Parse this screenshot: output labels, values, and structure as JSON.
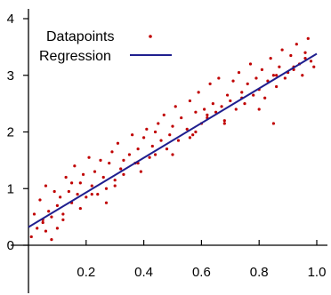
{
  "chart_data": {
    "type": "scatter",
    "title": "",
    "xlabel": "",
    "ylabel": "",
    "xlim": [
      0,
      1.0
    ],
    "ylim": [
      0,
      4
    ],
    "x_ticks": [
      {
        "value": 0.2,
        "label": "0.2"
      },
      {
        "value": 0.4,
        "label": "0.4"
      },
      {
        "value": 0.6,
        "label": "0.6"
      },
      {
        "value": 0.8,
        "label": "0.8"
      },
      {
        "value": 1.0,
        "label": "1.0"
      }
    ],
    "y_ticks": [
      {
        "value": 0,
        "label": "0"
      },
      {
        "value": 1,
        "label": "1"
      },
      {
        "value": 2,
        "label": "2"
      },
      {
        "value": 3,
        "label": "3"
      },
      {
        "value": 4,
        "label": "4"
      }
    ],
    "grid": false,
    "legend_position": "top-left",
    "series": [
      {
        "name": "Datapoints",
        "kind": "scatter",
        "color": "#c00000",
        "x": [
          0.01,
          0.02,
          0.03,
          0.04,
          0.05,
          0.06,
          0.06,
          0.07,
          0.08,
          0.09,
          0.1,
          0.1,
          0.11,
          0.12,
          0.13,
          0.14,
          0.15,
          0.16,
          0.17,
          0.18,
          0.18,
          0.19,
          0.2,
          0.21,
          0.22,
          0.23,
          0.24,
          0.25,
          0.26,
          0.27,
          0.28,
          0.29,
          0.3,
          0.31,
          0.32,
          0.33,
          0.35,
          0.36,
          0.37,
          0.38,
          0.39,
          0.4,
          0.41,
          0.42,
          0.43,
          0.44,
          0.45,
          0.46,
          0.47,
          0.48,
          0.49,
          0.5,
          0.51,
          0.52,
          0.53,
          0.55,
          0.56,
          0.57,
          0.58,
          0.59,
          0.6,
          0.61,
          0.62,
          0.63,
          0.64,
          0.65,
          0.66,
          0.67,
          0.68,
          0.69,
          0.7,
          0.71,
          0.72,
          0.73,
          0.74,
          0.75,
          0.76,
          0.77,
          0.78,
          0.79,
          0.8,
          0.81,
          0.82,
          0.83,
          0.84,
          0.85,
          0.86,
          0.87,
          0.88,
          0.89,
          0.9,
          0.91,
          0.92,
          0.93,
          0.94,
          0.95,
          0.96,
          0.97,
          0.98,
          0.99,
          0.05,
          0.12,
          0.15,
          0.22,
          0.27,
          0.33,
          0.38,
          0.44,
          0.5,
          0.56,
          0.62,
          0.68,
          0.74,
          0.8,
          0.86,
          0.92,
          0.96,
          0.08,
          0.3,
          0.58,
          0.85
        ],
        "y": [
          0.15,
          0.55,
          0.3,
          0.8,
          0.45,
          1.05,
          0.25,
          0.6,
          0.5,
          0.95,
          0.3,
          0.7,
          0.85,
          0.55,
          1.2,
          0.95,
          0.75,
          1.4,
          0.9,
          1.1,
          0.65,
          1.25,
          0.85,
          1.55,
          1.05,
          1.3,
          0.9,
          1.5,
          1.2,
          1.0,
          1.45,
          1.65,
          1.15,
          1.8,
          1.35,
          1.25,
          1.6,
          1.95,
          1.45,
          1.7,
          1.3,
          1.9,
          2.05,
          1.55,
          1.75,
          1.6,
          2.15,
          1.85,
          2.3,
          1.7,
          1.95,
          2.1,
          2.45,
          1.85,
          2.25,
          2.05,
          2.55,
          1.95,
          2.35,
          2.7,
          2.15,
          2.4,
          2.25,
          2.85,
          2.5,
          2.35,
          2.95,
          2.45,
          2.2,
          2.65,
          2.55,
          2.9,
          2.4,
          3.05,
          2.7,
          2.5,
          2.85,
          3.2,
          2.65,
          2.95,
          2.75,
          3.1,
          2.6,
          2.9,
          3.3,
          3.0,
          2.8,
          3.15,
          3.45,
          2.95,
          3.05,
          3.35,
          3.1,
          3.55,
          3.2,
          3.0,
          3.4,
          3.65,
          3.25,
          3.15,
          0.4,
          0.45,
          1.1,
          0.9,
          0.75,
          1.5,
          1.45,
          2.0,
          1.6,
          1.9,
          2.3,
          2.15,
          2.6,
          2.4,
          3.0,
          3.15,
          3.3,
          0.1,
          1.05,
          2.0,
          2.15
        ]
      },
      {
        "name": "Regression",
        "kind": "line",
        "color": "#1f1f8f",
        "x": [
          0,
          1.0
        ],
        "y": [
          0.32,
          3.38
        ]
      }
    ]
  }
}
